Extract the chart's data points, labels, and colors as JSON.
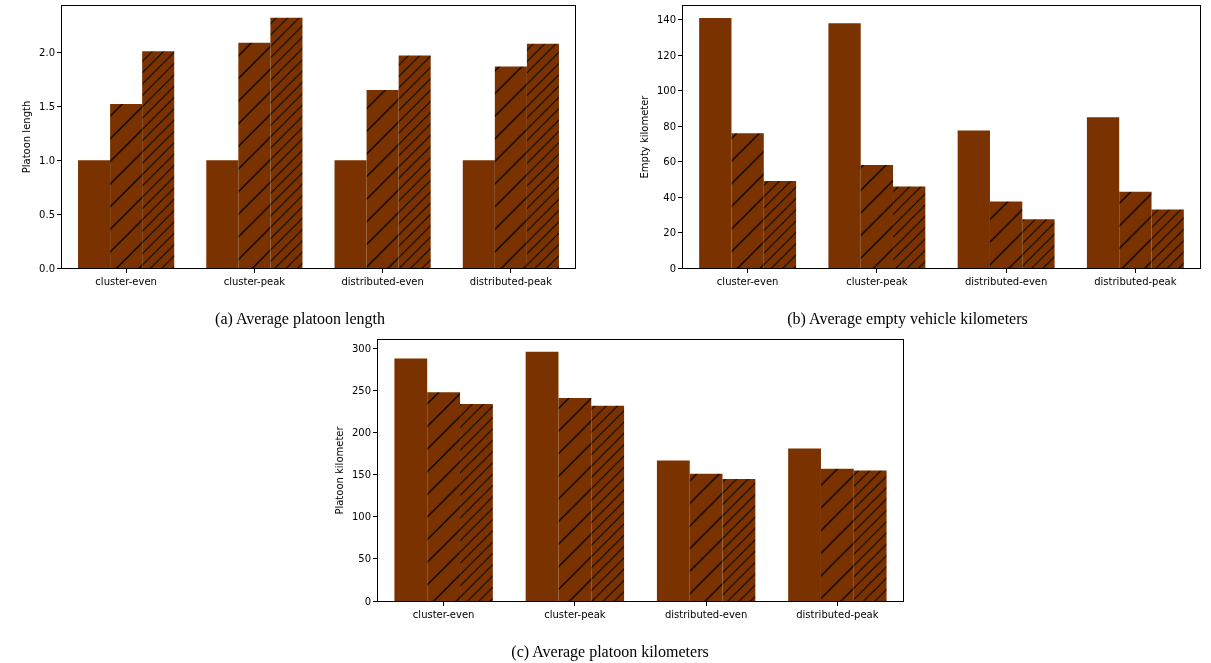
{
  "chart_data": [
    {
      "type": "bar",
      "title": "(a) Average platoon length",
      "ylabel": "Platoon length",
      "categories": [
        "cluster-even",
        "cluster-peak",
        "distributed-even",
        "distributed-peak"
      ],
      "series": [
        {
          "color": "#7a3300",
          "values": [
            1.0,
            1.0,
            1.0,
            1.0
          ]
        },
        {
          "color": "#7a3300",
          "values": [
            1.52,
            2.09,
            1.65,
            1.87
          ]
        },
        {
          "color": "#7a3300",
          "values": [
            2.01,
            2.32,
            1.97,
            2.08
          ]
        }
      ],
      "ylim": [
        0,
        2.43
      ],
      "yticks": [
        {
          "value": 0,
          "label": "0.0"
        },
        0.5,
        {
          "value": 1,
          "label": "1.0"
        },
        1.5,
        {
          "value": 2,
          "label": "2.0"
        }
      ]
    },
    {
      "type": "bar",
      "title": "(b) Average empty vehicle kilometers",
      "ylabel": "Empty kilometer",
      "categories": [
        "cluster-even",
        "cluster-peak",
        "distributed-even",
        "distributed-peak"
      ],
      "series": [
        {
          "color": "#7a3300",
          "values": [
            141,
            138,
            77.5,
            85
          ]
        },
        {
          "color": "#7a3300",
          "values": [
            76,
            58,
            37.5,
            43
          ]
        },
        {
          "color": "#7a3300",
          "values": [
            49,
            46,
            27.5,
            33
          ]
        }
      ],
      "ylim": [
        0,
        147.7
      ],
      "yticks": [
        0,
        20,
        40,
        60,
        80,
        100,
        120,
        140
      ]
    },
    {
      "type": "bar",
      "title": "(c) Average platoon kilometers",
      "ylabel": "Platoon kilometer",
      "categories": [
        "cluster-even",
        "cluster-peak",
        "distributed-even",
        "distributed-peak"
      ],
      "series": [
        {
          "color": "#7a3300",
          "values": [
            288,
            296,
            167,
            181
          ]
        },
        {
          "color": "#7a3300",
          "values": [
            248,
            241,
            151,
            157
          ]
        },
        {
          "color": "#7a3300",
          "values": [
            234,
            232,
            145,
            155
          ]
        }
      ],
      "ylim": [
        0,
        310
      ],
      "yticks": [
        0,
        50,
        100,
        150,
        200,
        250,
        300
      ]
    }
  ]
}
